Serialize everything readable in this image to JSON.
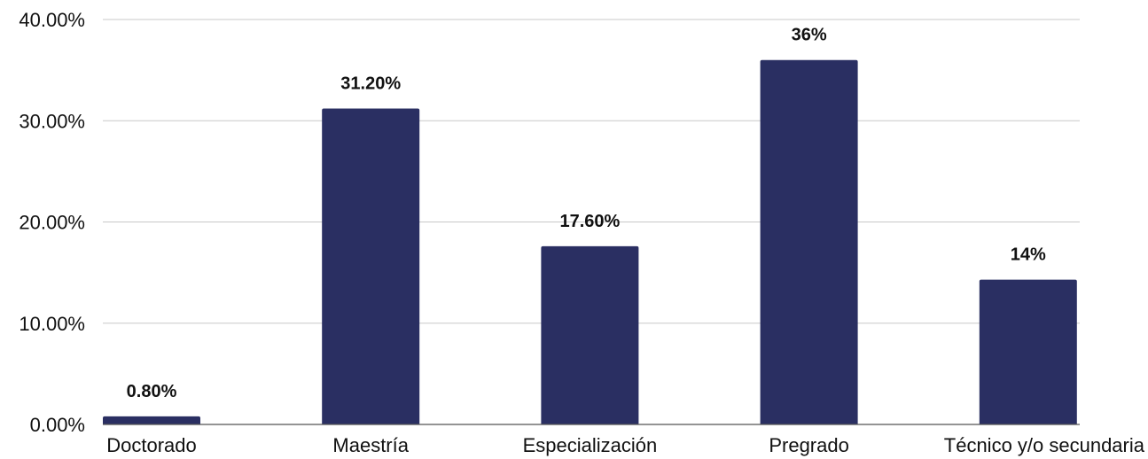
{
  "chart_data": {
    "type": "bar",
    "categories": [
      "Doctorado",
      "Maestría",
      "Especialización",
      "Pregrado",
      "Técnico y/o secundaria"
    ],
    "values": [
      0.8,
      31.2,
      17.6,
      36,
      14.3
    ],
    "data_labels": [
      "0.80%",
      "31.20%",
      "17.60%",
      "36%",
      "14%"
    ],
    "y_ticks": [
      0,
      10,
      20,
      30,
      40
    ],
    "y_tick_labels": [
      "0.00%",
      "10.00%",
      "20.00%",
      "30.00%",
      "40.00%"
    ],
    "ylim": [
      0,
      40
    ],
    "grid": true,
    "legend": "none",
    "title": "",
    "xlabel": "",
    "ylabel": "",
    "colors": {
      "bar": "#2a2f62",
      "grid": "#c8c8c8",
      "axis": "#555555",
      "text": "#111111"
    }
  }
}
